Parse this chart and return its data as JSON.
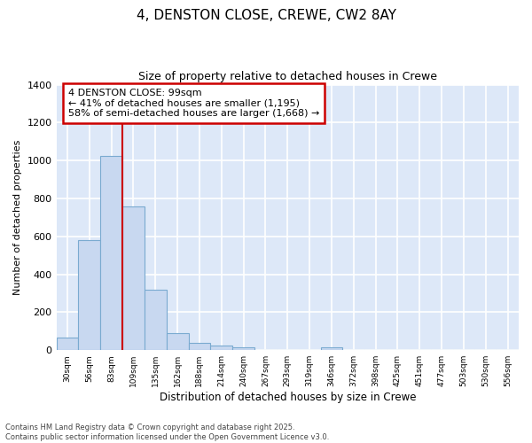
{
  "title": "4, DENSTON CLOSE, CREWE, CW2 8AY",
  "subtitle": "Size of property relative to detached houses in Crewe",
  "xlabel": "Distribution of detached houses by size in Crewe",
  "ylabel": "Number of detached properties",
  "bar_color": "#c8d8f0",
  "bar_edge_color": "#7aaad0",
  "background_color": "#dde8f8",
  "grid_color": "#ffffff",
  "categories": [
    "30sqm",
    "56sqm",
    "83sqm",
    "109sqm",
    "135sqm",
    "162sqm",
    "188sqm",
    "214sqm",
    "240sqm",
    "267sqm",
    "293sqm",
    "319sqm",
    "346sqm",
    "372sqm",
    "398sqm",
    "425sqm",
    "451sqm",
    "477sqm",
    "503sqm",
    "530sqm",
    "556sqm"
  ],
  "values": [
    65,
    580,
    1025,
    760,
    320,
    90,
    40,
    22,
    15,
    0,
    0,
    0,
    15,
    0,
    0,
    0,
    0,
    0,
    0,
    0,
    0
  ],
  "ylim": [
    0,
    1400
  ],
  "property_line_x": 2.5,
  "property_line_color": "#cc0000",
  "annotation_text": "4 DENSTON CLOSE: 99sqm\n← 41% of detached houses are smaller (1,195)\n58% of semi-detached houses are larger (1,668) →",
  "annotation_box_color": "#cc0000",
  "footer_text": "Contains HM Land Registry data © Crown copyright and database right 2025.\nContains public sector information licensed under the Open Government Licence v3.0.",
  "title_fontsize": 11,
  "subtitle_fontsize": 9,
  "annotation_fontsize": 8,
  "footer_fontsize": 6,
  "yticks": [
    0,
    200,
    400,
    600,
    800,
    1000,
    1200,
    1400
  ]
}
